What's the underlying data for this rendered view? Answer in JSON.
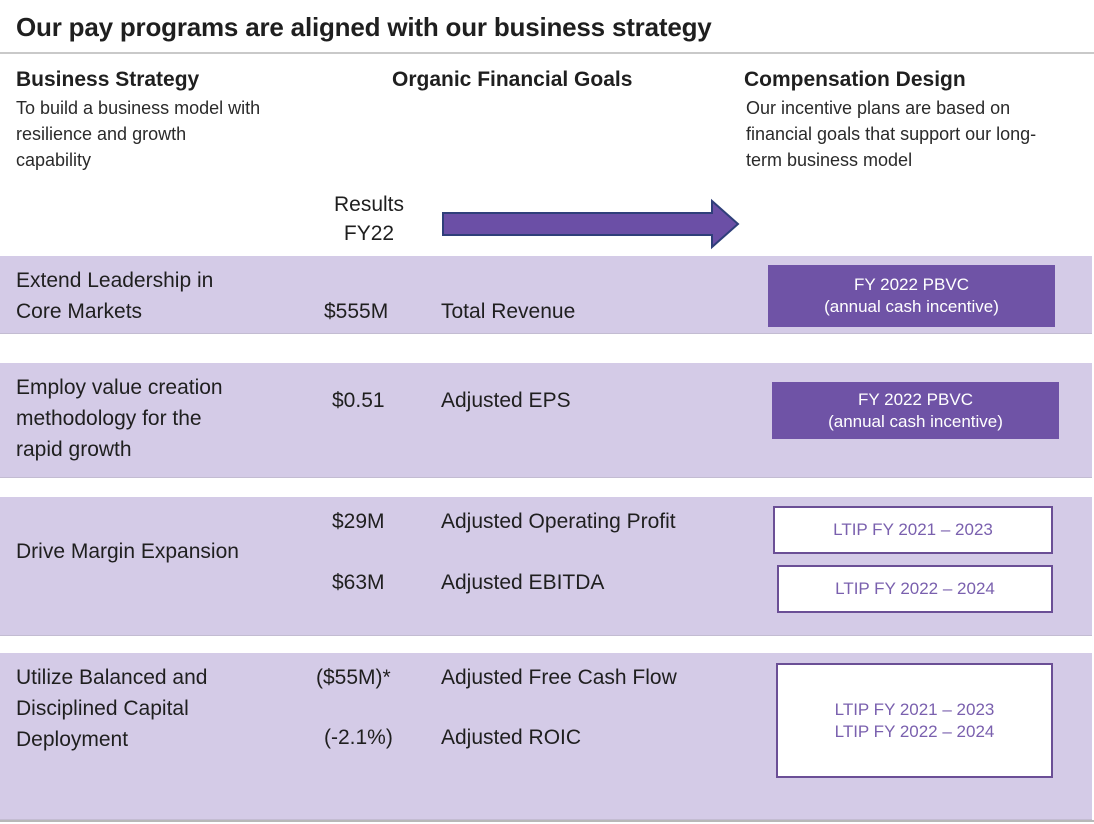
{
  "title": "Our pay programs are aligned with our business strategy",
  "headers": {
    "strategy": {
      "title": "Business Strategy",
      "lines": [
        "To build a business model with",
        "resilience and growth",
        "capability"
      ]
    },
    "goals": {
      "title": "Organic Financial Goals"
    },
    "design": {
      "title": "Compensation Design",
      "lines": [
        "Our incentive plans are based on",
        "financial  goals that support our long-",
        "term business model"
      ]
    },
    "results": {
      "lines": [
        "Results",
        "FY22"
      ]
    }
  },
  "colors": {
    "band": "#d4cbe7",
    "accent": "#6f53a6",
    "arrow": "#6b4fa6",
    "arrow_border": "#2f3f7a"
  },
  "rows": [
    {
      "strategy_lines": [
        "Extend Leadership in",
        "Core Markets"
      ],
      "metrics": [
        {
          "value": "$555M",
          "goal": "Total Revenue"
        }
      ],
      "design_lines": [
        "FY 2022 PBVC",
        "(annual cash incentive)"
      ]
    },
    {
      "strategy_lines": [
        "Employ value creation",
        "methodology for the",
        "rapid growth"
      ],
      "metrics": [
        {
          "value": "$0.51",
          "goal": "Adjusted EPS"
        }
      ],
      "design_lines": [
        "FY 2022 PBVC",
        "(annual cash incentive)"
      ]
    },
    {
      "strategy_lines": [
        "Drive Margin Expansion"
      ],
      "metrics": [
        {
          "value": "$29M",
          "goal": "Adjusted Operating Profit"
        },
        {
          "value": "$63M",
          "goal": "Adjusted EBITDA"
        }
      ],
      "design_boxes": [
        "LTIP FY 2021 – 2023",
        "LTIP FY 2022 – 2024"
      ]
    },
    {
      "strategy_lines": [
        "Utilize Balanced and",
        "Disciplined Capital",
        "Deployment"
      ],
      "metrics": [
        {
          "value": "($55M)*",
          "goal": "Adjusted Free Cash Flow"
        },
        {
          "value": "(-2.1%)",
          "goal": "Adjusted ROIC"
        }
      ],
      "design_lines": [
        "LTIP FY 2021 – 2023",
        "LTIP FY 2022 – 2024"
      ]
    }
  ]
}
